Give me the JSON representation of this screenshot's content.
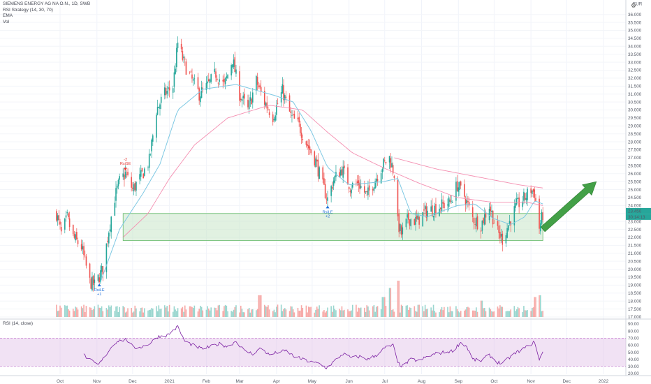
{
  "legend": {
    "symbol": "SIEMENS ENERGY AG NA O.N., 1D, SWB",
    "line2": "RSI Strategy (14, 30, 70)",
    "line3": "EMA",
    "line4": "Vol"
  },
  "rsi_legend": "RSI (14, close)",
  "currency_label": "EUR",
  "price_badges": [
    "23.450",
    "30:14:13"
  ],
  "colors": {
    "up": "#26a69a",
    "down": "#ef5350",
    "ema_fast": "#7ec8e3",
    "ema_slow": "#f48fb1",
    "zone_fill": "#c8e6c9",
    "zone_stroke": "#66bb6a",
    "arrow": "#43a047",
    "rsi_line": "#7b1fa2",
    "rsi_band": "#e1bee7",
    "signal": "#1e6fd9",
    "signal_short": "#e53935"
  },
  "chart_data": {
    "type": "candlestick",
    "title": "SIEMENS ENERGY AG NA O.N., 1D, SWB",
    "price_axis": {
      "range": [
        17.0,
        36.5
      ],
      "ticks": [
        "36.000",
        "35.500",
        "35.000",
        "34.500",
        "34.000",
        "33.500",
        "33.000",
        "32.500",
        "32.000",
        "31.500",
        "31.000",
        "30.500",
        "30.000",
        "29.500",
        "29.000",
        "28.500",
        "28.000",
        "27.500",
        "27.000",
        "26.500",
        "26.000",
        "25.500",
        "25.000",
        "24.500",
        "24.000",
        "23.500",
        "23.000",
        "22.500",
        "22.000",
        "21.500",
        "21.000",
        "20.500",
        "20.000",
        "19.500",
        "19.000",
        "18.500",
        "18.000",
        "17.500",
        "17.000"
      ]
    },
    "time_axis": [
      "Oct",
      "Nov",
      "Dec",
      "2021",
      "Feb",
      "Mar",
      "Apr",
      "May",
      "Jun",
      "Jul",
      "Aug",
      "Sep",
      "Oct",
      "Nov",
      "Dec",
      "2022"
    ],
    "price_path": [
      [
        "2020-09-28",
        23.5
      ],
      [
        "2020-10-02",
        22.2
      ],
      [
        "2020-10-07",
        23.2
      ],
      [
        "2020-10-12",
        22.0
      ],
      [
        "2020-10-19",
        21.4
      ],
      [
        "2020-10-26",
        19.2
      ],
      [
        "2020-10-30",
        19.0
      ],
      [
        "2020-11-06",
        20.0
      ],
      [
        "2020-11-11",
        22.5
      ],
      [
        "2020-11-16",
        24.5
      ],
      [
        "2020-11-20",
        25.5
      ],
      [
        "2020-11-25",
        26.0
      ],
      [
        "2020-12-01",
        25.0
      ],
      [
        "2020-12-08",
        25.8
      ],
      [
        "2020-12-15",
        26.8
      ],
      [
        "2020-12-21",
        30.0
      ],
      [
        "2020-12-28",
        31.0
      ],
      [
        "2021-01-04",
        31.5
      ],
      [
        "2021-01-08",
        34.2
      ],
      [
        "2021-01-13",
        33.0
      ],
      [
        "2021-01-19",
        32.0
      ],
      [
        "2021-01-26",
        31.0
      ],
      [
        "2021-02-02",
        31.5
      ],
      [
        "2021-02-09",
        32.3
      ],
      [
        "2021-02-16",
        31.5
      ],
      [
        "2021-02-23",
        33.2
      ],
      [
        "2021-03-01",
        31.0
      ],
      [
        "2021-03-08",
        30.0
      ],
      [
        "2021-03-15",
        31.8
      ],
      [
        "2021-03-22",
        30.5
      ],
      [
        "2021-03-29",
        29.6
      ],
      [
        "2021-04-06",
        31.2
      ],
      [
        "2021-04-13",
        29.6
      ],
      [
        "2021-04-20",
        29.0
      ],
      [
        "2021-04-27",
        27.8
      ],
      [
        "2021-05-04",
        26.8
      ],
      [
        "2021-05-10",
        25.2
      ],
      [
        "2021-05-14",
        24.4
      ],
      [
        "2021-05-19",
        25.6
      ],
      [
        "2021-05-26",
        26.3
      ],
      [
        "2021-06-02",
        25.2
      ],
      [
        "2021-06-09",
        25.4
      ],
      [
        "2021-06-16",
        24.6
      ],
      [
        "2021-06-22",
        25.5
      ],
      [
        "2021-06-29",
        26.5
      ],
      [
        "2021-07-05",
        27.0
      ],
      [
        "2021-07-09",
        26.0
      ],
      [
        "2021-07-12",
        22.9
      ],
      [
        "2021-07-15",
        22.2
      ],
      [
        "2021-07-21",
        23.2
      ],
      [
        "2021-07-28",
        23.0
      ],
      [
        "2021-08-04",
        23.6
      ],
      [
        "2021-08-11",
        23.8
      ],
      [
        "2021-08-18",
        24.0
      ],
      [
        "2021-08-25",
        24.2
      ],
      [
        "2021-08-31",
        25.3
      ],
      [
        "2021-09-06",
        24.6
      ],
      [
        "2021-09-13",
        23.2
      ],
      [
        "2021-09-20",
        22.8
      ],
      [
        "2021-09-27",
        24.0
      ],
      [
        "2021-10-04",
        22.3
      ],
      [
        "2021-10-08",
        21.9
      ],
      [
        "2021-10-13",
        22.8
      ],
      [
        "2021-10-20",
        24.0
      ],
      [
        "2021-10-27",
        24.5
      ],
      [
        "2021-11-01",
        25.0
      ],
      [
        "2021-11-04",
        24.8
      ],
      [
        "2021-11-08",
        22.6
      ],
      [
        "2021-11-11",
        23.45
      ]
    ],
    "ema_fast_path": [
      [
        "2020-11-04",
        19.2
      ],
      [
        "2020-11-20",
        22.5
      ],
      [
        "2020-12-10",
        24.8
      ],
      [
        "2020-12-24",
        26.6
      ],
      [
        "2021-01-08",
        30.0
      ],
      [
        "2021-01-29",
        31.3
      ],
      [
        "2021-02-26",
        31.6
      ],
      [
        "2021-03-31",
        30.9
      ],
      [
        "2021-04-15",
        30.5
      ],
      [
        "2021-04-30",
        28.7
      ],
      [
        "2021-05-14",
        26.4
      ],
      [
        "2021-06-01",
        25.3
      ],
      [
        "2021-06-30",
        25.5
      ],
      [
        "2021-07-12",
        25.7
      ],
      [
        "2021-07-23",
        23.5
      ],
      [
        "2021-08-06",
        23.3
      ],
      [
        "2021-08-31",
        24.0
      ],
      [
        "2021-09-15",
        24.1
      ],
      [
        "2021-09-30",
        23.2
      ],
      [
        "2021-10-15",
        22.8
      ],
      [
        "2021-10-27",
        23.3
      ],
      [
        "2021-11-04",
        24.3
      ],
      [
        "2021-11-11",
        24.1
      ]
    ],
    "ema_slow_path": [
      [
        "2020-11-23",
        22.0
      ],
      [
        "2020-12-14",
        23.5
      ],
      [
        "2021-01-01",
        25.7
      ],
      [
        "2021-01-22",
        27.8
      ],
      [
        "2021-02-19",
        29.5
      ],
      [
        "2021-03-26",
        30.3
      ],
      [
        "2021-04-23",
        30.0
      ],
      [
        "2021-05-14",
        28.6
      ],
      [
        "2021-06-04",
        27.3
      ],
      [
        "2021-07-02",
        26.3
      ],
      [
        "2021-07-30",
        25.4
      ],
      [
        "2021-08-31",
        24.5
      ],
      [
        "2021-09-30",
        24.2
      ],
      [
        "2021-10-29",
        24.2
      ],
      [
        "2021-11-11",
        24.0
      ]
    ],
    "ema_long_path": [
      [
        "2021-07-09",
        27.0
      ],
      [
        "2021-08-13",
        26.3
      ],
      [
        "2021-09-17",
        25.8
      ],
      [
        "2021-10-22",
        25.3
      ],
      [
        "2021-11-11",
        25.1
      ]
    ],
    "support_zone": {
      "from": "2020-11-23",
      "to": "2021-11-11",
      "low": 21.8,
      "high": 23.5
    },
    "projection_arrow": {
      "from": [
        "2021-11-11",
        22.5
      ],
      "to": [
        "2021-12-26",
        25.5
      ]
    },
    "signals": [
      {
        "label": "RsiLE",
        "date": "2020-11-03",
        "price": 19.1,
        "num": "+1",
        "dir": "long"
      },
      {
        "label": "RsiSE",
        "date": "2020-11-25",
        "price": 26.2,
        "num": "-2",
        "dir": "short"
      },
      {
        "label": "RsiLE",
        "date": "2021-05-14",
        "price": 24.0,
        "num": "+2",
        "dir": "long"
      }
    ],
    "rsi": {
      "range": [
        20,
        90
      ],
      "ticks": [
        "90.00",
        "80.00",
        "70.00",
        "60.00",
        "50.00",
        "40.00",
        "30.00",
        "20.00"
      ],
      "upper": 70,
      "lower": 30,
      "values": [
        [
          "2020-10-21",
          46
        ],
        [
          "2020-10-27",
          38
        ],
        [
          "2020-11-02",
          32
        ],
        [
          "2020-11-06",
          40
        ],
        [
          "2020-11-12",
          55
        ],
        [
          "2020-11-18",
          66
        ],
        [
          "2020-11-26",
          68
        ],
        [
          "2020-12-02",
          56
        ],
        [
          "2020-12-09",
          58
        ],
        [
          "2020-12-16",
          63
        ],
        [
          "2020-12-22",
          72
        ],
        [
          "2020-12-30",
          74
        ],
        [
          "2021-01-08",
          86
        ],
        [
          "2021-01-14",
          65
        ],
        [
          "2021-01-21",
          60
        ],
        [
          "2021-01-28",
          55
        ],
        [
          "2021-02-05",
          58
        ],
        [
          "2021-02-12",
          62
        ],
        [
          "2021-02-19",
          58
        ],
        [
          "2021-02-26",
          66
        ],
        [
          "2021-03-05",
          52
        ],
        [
          "2021-03-12",
          48
        ],
        [
          "2021-03-19",
          56
        ],
        [
          "2021-03-26",
          46
        ],
        [
          "2021-04-02",
          50
        ],
        [
          "2021-04-09",
          52
        ],
        [
          "2021-04-16",
          44
        ],
        [
          "2021-04-23",
          40
        ],
        [
          "2021-04-30",
          36
        ],
        [
          "2021-05-07",
          34
        ],
        [
          "2021-05-13",
          28
        ],
        [
          "2021-05-20",
          38
        ],
        [
          "2021-05-27",
          48
        ],
        [
          "2021-06-03",
          42
        ],
        [
          "2021-06-10",
          44
        ],
        [
          "2021-06-17",
          40
        ],
        [
          "2021-06-24",
          46
        ],
        [
          "2021-07-01",
          56
        ],
        [
          "2021-07-08",
          60
        ],
        [
          "2021-07-12",
          35
        ],
        [
          "2021-07-16",
          30
        ],
        [
          "2021-07-23",
          40
        ],
        [
          "2021-07-30",
          38
        ],
        [
          "2021-08-06",
          44
        ],
        [
          "2021-08-13",
          48
        ],
        [
          "2021-08-20",
          50
        ],
        [
          "2021-08-27",
          52
        ],
        [
          "2021-09-03",
          64
        ],
        [
          "2021-09-08",
          58
        ],
        [
          "2021-09-13",
          40
        ],
        [
          "2021-09-20",
          38
        ],
        [
          "2021-09-27",
          46
        ],
        [
          "2021-10-04",
          36
        ],
        [
          "2021-10-08",
          34
        ],
        [
          "2021-10-15",
          44
        ],
        [
          "2021-10-22",
          52
        ],
        [
          "2021-10-29",
          58
        ],
        [
          "2021-11-03",
          64
        ],
        [
          "2021-11-05",
          60
        ],
        [
          "2021-11-08",
          40
        ],
        [
          "2021-11-11",
          50
        ]
      ]
    },
    "volume": {
      "spikes": [
        [
          "2021-03-18",
          0.6
        ],
        [
          "2021-06-30",
          0.55
        ],
        [
          "2021-07-05",
          0.8
        ],
        [
          "2021-07-12",
          1.0
        ],
        [
          "2021-09-20",
          0.45
        ],
        [
          "2021-11-05",
          0.55
        ],
        [
          "2021-11-08",
          0.6
        ]
      ]
    }
  }
}
